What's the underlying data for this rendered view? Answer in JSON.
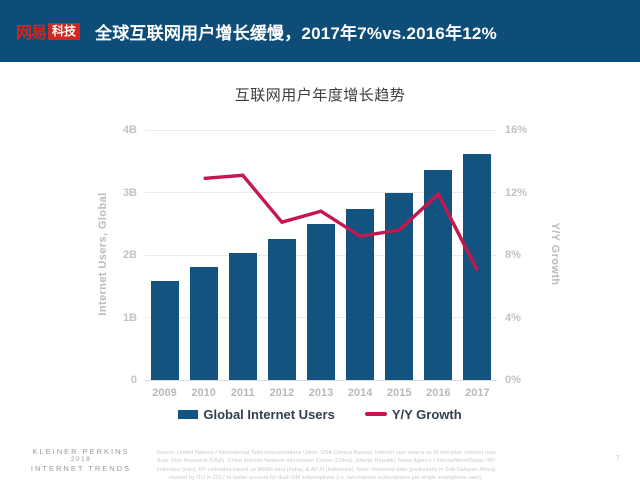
{
  "header": {
    "logo_brand": "网易",
    "logo_sub": "科技",
    "title": "全球互联网用户增长缓慢，2017年7%vs.2016年12%"
  },
  "colors": {
    "header_bg": "#0d4d78",
    "logo_red": "#d3261f",
    "bar_blue": "#125380",
    "line_crimson": "#c5174e"
  },
  "chart_data": {
    "type": "bar+line",
    "title": "互联网用户年度增长趋势",
    "categories": [
      "2009",
      "2010",
      "2011",
      "2012",
      "2013",
      "2014",
      "2015",
      "2016",
      "2017"
    ],
    "series": [
      {
        "name": "Global Internet Users",
        "type": "bar",
        "axis": "left",
        "color": "#125380",
        "values": [
          1.59,
          1.81,
          2.04,
          2.26,
          2.5,
          2.74,
          3.0,
          3.36,
          3.62
        ]
      },
      {
        "name": "Y/Y Growth",
        "type": "line",
        "axis": "right",
        "color": "#c5174e",
        "values": [
          null,
          12.9,
          13.1,
          10.1,
          10.8,
          9.2,
          9.6,
          11.9,
          7.0
        ]
      }
    ],
    "left_axis": {
      "label": "Internet Users, Global",
      "min": 0,
      "max": 4,
      "tick_labels": [
        "0",
        "1B",
        "2B",
        "3B",
        "4B"
      ]
    },
    "right_axis": {
      "label": "Y/Y Growth",
      "min": 0,
      "max": 16,
      "tick_labels": [
        "0%",
        "4%",
        "8%",
        "12%",
        "16%"
      ]
    },
    "grid": true,
    "legend_position": "bottom"
  },
  "footer": {
    "brand_line1": "KLEINER PERKINS",
    "brand_line2": "2018",
    "brand_line3": "INTERNET TRENDS",
    "source_lines": [
      "Source: United Nations / International Telecommunications Union, USA Census Bureau. Internet user data is as of mid-year. Internet user",
      "data: Pew Research (USA), China Internet Network Information Center (China), Islamic Republic News Agency / InternetWorldStats / KP",
      "estimates (Iran), KP estimates based on IAMAI data (India), & APJII (Indonesia).  Note: Historical data (particularly in Sub-Saharan Africa)",
      "revised by ITU in 2017 to better account for dual-SIM subscriptions (i.e. two internet subscriptions per single smartphone user)."
    ],
    "page_number": "7"
  }
}
